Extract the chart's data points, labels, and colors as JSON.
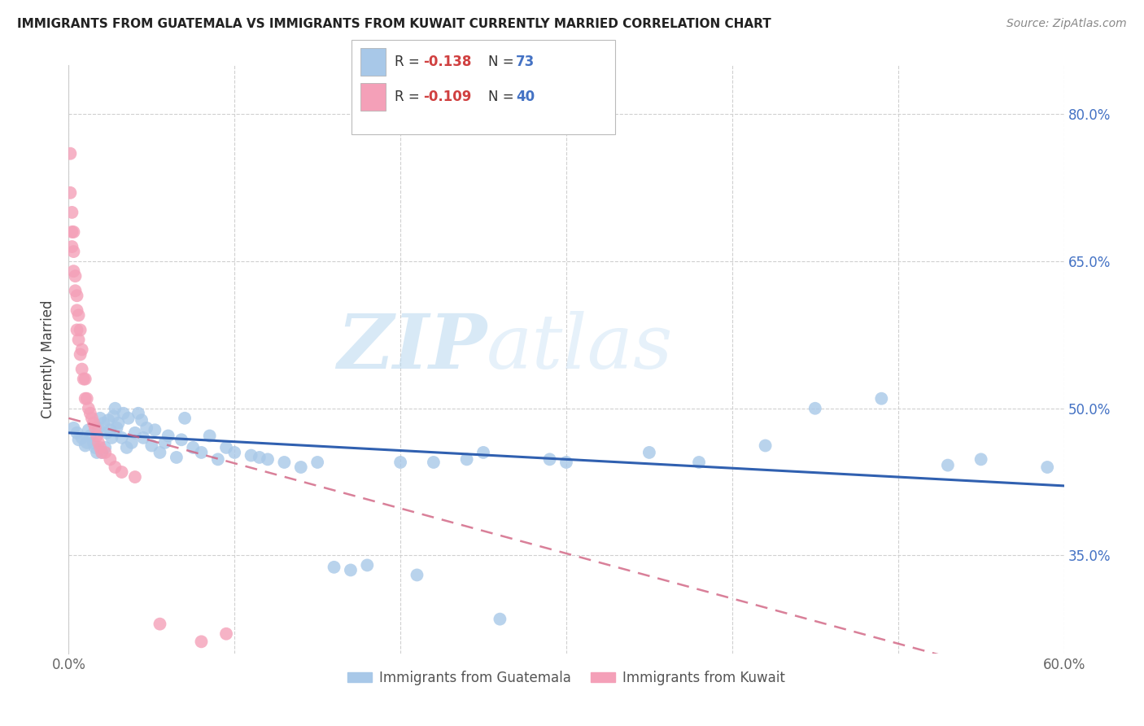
{
  "title": "IMMIGRANTS FROM GUATEMALA VS IMMIGRANTS FROM KUWAIT CURRENTLY MARRIED CORRELATION CHART",
  "source": "Source: ZipAtlas.com",
  "ylabel": "Currently Married",
  "x_min": 0.0,
  "x_max": 0.6,
  "y_min": 0.25,
  "y_max": 0.85,
  "x_ticks": [
    0.0,
    0.1,
    0.2,
    0.3,
    0.4,
    0.5,
    0.6
  ],
  "x_ticklabels": [
    "0.0%",
    "",
    "",
    "",
    "",
    "",
    "60.0%"
  ],
  "y_ticks": [
    0.35,
    0.5,
    0.65,
    0.8
  ],
  "y_ticklabels": [
    "35.0%",
    "50.0%",
    "65.0%",
    "80.0%"
  ],
  "guatemala_color": "#a8c8e8",
  "kuwait_color": "#f4a0b8",
  "trendline_guatemala_color": "#3060b0",
  "trendline_kuwait_color": "#d06080",
  "R_guatemala": -0.138,
  "N_guatemala": 73,
  "R_kuwait": -0.109,
  "N_kuwait": 40,
  "legend_label_1": "Immigrants from Guatemala",
  "legend_label_2": "Immigrants from Kuwait",
  "watermark_zip": "ZIP",
  "watermark_atlas": "atlas",
  "gt_x": [
    0.003,
    0.005,
    0.006,
    0.008,
    0.01,
    0.011,
    0.012,
    0.013,
    0.015,
    0.016,
    0.017,
    0.018,
    0.019,
    0.02,
    0.021,
    0.022,
    0.023,
    0.024,
    0.025,
    0.026,
    0.027,
    0.028,
    0.029,
    0.03,
    0.032,
    0.033,
    0.035,
    0.036,
    0.038,
    0.04,
    0.042,
    0.044,
    0.045,
    0.047,
    0.05,
    0.052,
    0.055,
    0.058,
    0.06,
    0.065,
    0.068,
    0.07,
    0.075,
    0.08,
    0.085,
    0.09,
    0.095,
    0.1,
    0.11,
    0.115,
    0.12,
    0.13,
    0.14,
    0.15,
    0.16,
    0.17,
    0.18,
    0.2,
    0.21,
    0.22,
    0.24,
    0.25,
    0.26,
    0.29,
    0.3,
    0.35,
    0.38,
    0.42,
    0.45,
    0.49,
    0.53,
    0.55,
    0.59
  ],
  "gt_y": [
    0.48,
    0.475,
    0.468,
    0.47,
    0.462,
    0.465,
    0.478,
    0.472,
    0.465,
    0.46,
    0.455,
    0.48,
    0.49,
    0.455,
    0.485,
    0.46,
    0.475,
    0.488,
    0.478,
    0.47,
    0.492,
    0.5,
    0.48,
    0.485,
    0.47,
    0.495,
    0.46,
    0.49,
    0.465,
    0.475,
    0.495,
    0.488,
    0.47,
    0.48,
    0.462,
    0.478,
    0.455,
    0.465,
    0.472,
    0.45,
    0.468,
    0.49,
    0.46,
    0.455,
    0.472,
    0.448,
    0.46,
    0.455,
    0.452,
    0.45,
    0.448,
    0.445,
    0.44,
    0.445,
    0.338,
    0.335,
    0.34,
    0.445,
    0.33,
    0.445,
    0.448,
    0.455,
    0.285,
    0.448,
    0.445,
    0.455,
    0.445,
    0.462,
    0.5,
    0.51,
    0.442,
    0.448,
    0.44
  ],
  "kw_x": [
    0.001,
    0.001,
    0.002,
    0.002,
    0.002,
    0.003,
    0.003,
    0.003,
    0.004,
    0.004,
    0.005,
    0.005,
    0.005,
    0.006,
    0.006,
    0.007,
    0.007,
    0.008,
    0.008,
    0.009,
    0.01,
    0.01,
    0.011,
    0.012,
    0.013,
    0.014,
    0.015,
    0.016,
    0.017,
    0.018,
    0.019,
    0.02,
    0.022,
    0.025,
    0.028,
    0.032,
    0.04,
    0.055,
    0.08,
    0.095
  ],
  "kw_y": [
    0.76,
    0.72,
    0.7,
    0.68,
    0.665,
    0.68,
    0.66,
    0.64,
    0.635,
    0.62,
    0.615,
    0.6,
    0.58,
    0.595,
    0.57,
    0.58,
    0.555,
    0.56,
    0.54,
    0.53,
    0.53,
    0.51,
    0.51,
    0.5,
    0.495,
    0.49,
    0.485,
    0.48,
    0.472,
    0.465,
    0.46,
    0.455,
    0.455,
    0.448,
    0.44,
    0.435,
    0.43,
    0.28,
    0.262,
    0.27
  ]
}
